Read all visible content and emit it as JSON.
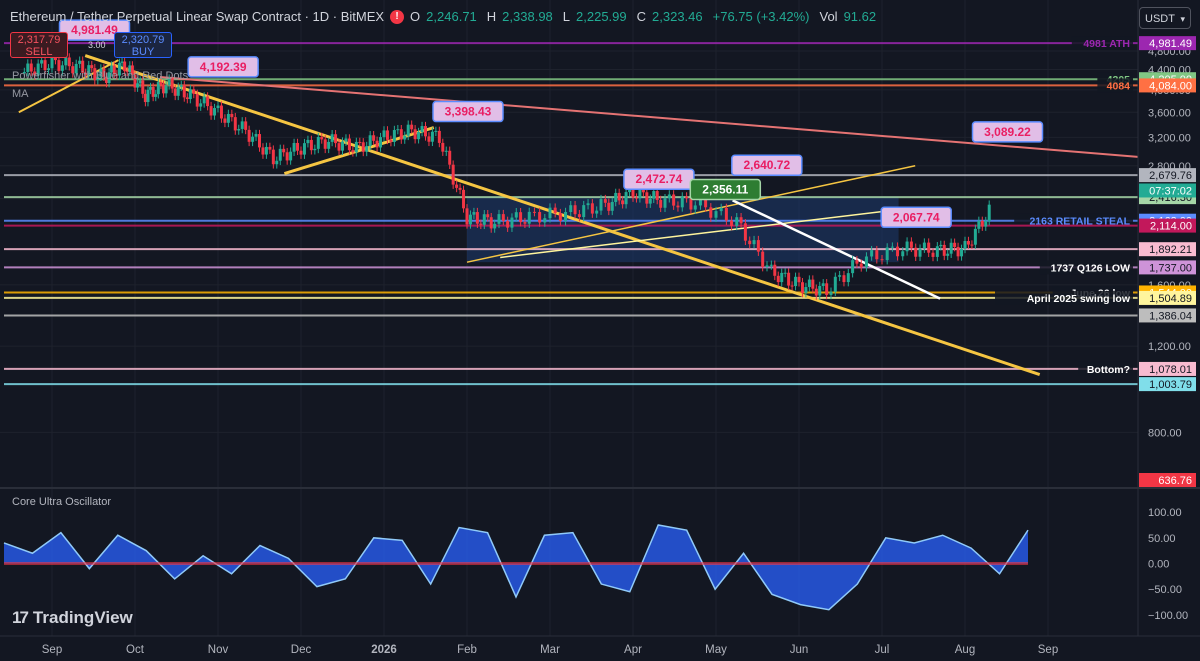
{
  "header": {
    "symbol_title": "Ethereum / Tether Perpetual Linear Swap Contract · 1D · BitMEX",
    "ohlc": [
      {
        "k": "O",
        "v": "2,246.71"
      },
      {
        "k": "H",
        "v": "2,338.98"
      },
      {
        "k": "L",
        "v": "2,225.99"
      },
      {
        "k": "C",
        "v": "2,323.46"
      }
    ],
    "change": "+76.75 (+3.42%)",
    "vol_label": "Vol",
    "vol": "91.62",
    "currency": "USDT",
    "sell_price": "2,317.79",
    "sell_label": "SELL",
    "buy_price": "2,320.79",
    "buy_label": "BUY",
    "spread": "3.00"
  },
  "indicators": {
    "main": "Powerfisher with Blue and Red Dots",
    "ma": "MA",
    "oscillator": "Core Ultra Oscillator"
  },
  "branding": {
    "name": "TradingView"
  },
  "colors": {
    "bg": "#131722",
    "up": "#22ab94",
    "down": "#f23645",
    "trend": "#f5c542",
    "channel": "#1e3a6e"
  },
  "chart_data": [
    {
      "type": "candlestick",
      "title": "",
      "y_scale": "log",
      "ylim": [
        636.76,
        5200
      ],
      "x_ticks": [
        "Sep",
        "Oct",
        "Nov",
        "Dec",
        "2026",
        "Feb",
        "Mar",
        "Apr",
        "May",
        "Jun",
        "Jul",
        "Aug",
        "Sep"
      ],
      "y_ticks": [
        4800,
        4400,
        4000,
        3600,
        3200,
        2800,
        2400,
        1600,
        1200,
        800
      ],
      "close_path": [
        [
          "Sep",
          4350
        ],
        [
          "Sep",
          4550
        ],
        [
          "Sep",
          4450
        ],
        [
          "Oct",
          4250
        ],
        [
          "Oct",
          4500
        ],
        [
          "Oct",
          3900
        ],
        [
          "Oct",
          4100
        ],
        [
          "Nov",
          3900
        ],
        [
          "Nov",
          3600
        ],
        [
          "Nov",
          3300
        ],
        [
          "Dec",
          2900
        ],
        [
          "Dec",
          3050
        ],
        [
          "Dec",
          3150
        ],
        [
          "2026",
          3050
        ],
        [
          "2026",
          3200
        ],
        [
          "2026",
          3300
        ],
        [
          "Feb",
          3200
        ],
        [
          "Feb",
          2200
        ],
        [
          "Feb",
          2150
        ],
        [
          "Mar",
          2200
        ],
        [
          "Mar",
          2250
        ],
        [
          "Apr",
          2330
        ],
        [
          "Apr",
          2470
        ],
        [
          "Apr",
          2380
        ],
        [
          "May",
          2350
        ],
        [
          "May",
          2150
        ],
        [
          "Jun",
          1700
        ],
        [
          "Jun",
          1600
        ],
        [
          "Jun",
          1560
        ],
        [
          "Jul",
          1800
        ],
        [
          "Jul",
          1900
        ],
        [
          "Aug",
          1880
        ],
        [
          "Aug",
          1900
        ],
        [
          "Aug",
          2323.46
        ]
      ],
      "callouts": [
        "4,981.49",
        "4,192.39",
        "3,398.43",
        "2,472.74",
        "2,640.72",
        "2,356.11",
        "2,067.74",
        "3,089.22"
      ],
      "levels": [
        {
          "label": "4981 ATH",
          "price": "4,981.49",
          "color": "#9c27b0"
        },
        {
          "label": "4205",
          "price": "4,205.00",
          "color": "#81c784"
        },
        {
          "label": "4084",
          "price": "4,084.00",
          "color": "#ff7043"
        },
        {
          "label": "",
          "price": "2,679.76",
          "color": "#b2b5be"
        },
        {
          "label": "",
          "price": "2,416.30",
          "color": "#a5d6a7"
        },
        {
          "label": "2163 RETAIL STEAL",
          "price": "2,163.00",
          "color": "#5b8cff"
        },
        {
          "label": "",
          "price": "2,114.00",
          "color": "#c2185b"
        },
        {
          "label": "",
          "price": "1,892.21",
          "color": "#f8bbd0"
        },
        {
          "label": "1737 Q126 LOW",
          "price": "1,737.00",
          "color": "#ce93d8"
        },
        {
          "label": "June 26 low",
          "price": "1,544.00",
          "color": "#ffb300"
        },
        {
          "label": "April 2025 swing low",
          "price": "1,504.89",
          "color": "#fff59d"
        },
        {
          "label": "",
          "price": "1,386.04",
          "color": "#bdbdbd"
        },
        {
          "label": "Bottom?",
          "price": "1,078.01",
          "color": "#f8bbd0"
        },
        {
          "label": "",
          "price": "1,003.79",
          "color": "#80deea"
        }
      ],
      "countdown": "07:37:02",
      "last_price": "2,323.46",
      "bottom_price": "636.76"
    },
    {
      "type": "area",
      "title": "Core Ultra Oscillator",
      "ylim": [
        -110,
        110
      ],
      "y_ticks": [
        "100.00",
        "50.00",
        "0.00",
        "−50.00",
        "−100.00"
      ],
      "series": [
        {
          "values": [
            40,
            20,
            60,
            -10,
            55,
            25,
            -30,
            15,
            -20,
            35,
            10,
            -45,
            -30,
            50,
            45,
            -40,
            70,
            60,
            -65,
            55,
            60,
            -40,
            -55,
            75,
            65,
            -50,
            20,
            -60,
            -80,
            -90,
            -40,
            50,
            40,
            55,
            30,
            -20,
            65
          ]
        }
      ]
    }
  ]
}
